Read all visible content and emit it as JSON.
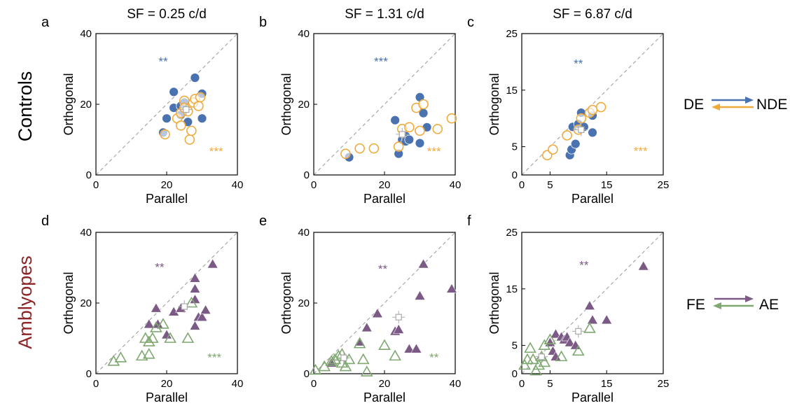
{
  "colors": {
    "blue": "#4a72b0",
    "orange": "#f0aa3c",
    "purple": "#7c5a86",
    "green": "#7fa870",
    "gray": "#aaaaaa",
    "axis": "#000000",
    "group_control": "#000000",
    "group_amblyope": "#8b2626"
  },
  "groups": {
    "top": "Controls",
    "bottom": "Amblyopes"
  },
  "legends": {
    "top": {
      "left": "DE",
      "right": "NDE"
    },
    "bottom": {
      "left": "FE",
      "right": "AE"
    }
  },
  "chart_data": [
    {
      "panel": "a",
      "type": "scatter",
      "title": "SF = 0.25 c/d",
      "xlabel": "Parallel",
      "ylabel": "Orthogonal",
      "xlim": [
        0,
        40
      ],
      "ylim": [
        0,
        40
      ],
      "ticks": [
        0,
        20,
        40
      ],
      "marker": "circle",
      "series": [
        {
          "color": "blue",
          "filled": true,
          "points": [
            [
              19,
              12
            ],
            [
              20,
              16
            ],
            [
              22,
              19
            ],
            [
              22,
              23.5
            ],
            [
              24,
              19.5
            ],
            [
              24,
              17
            ],
            [
              25,
              20.5
            ],
            [
              26,
              15
            ],
            [
              28,
              27.5
            ],
            [
              30,
              23
            ],
            [
              30,
              16
            ]
          ]
        },
        {
          "color": "orange",
          "filled": false,
          "points": [
            [
              19.5,
              11.5
            ],
            [
              23,
              16
            ],
            [
              24,
              14
            ],
            [
              24,
              17.5
            ],
            [
              25,
              21
            ],
            [
              25,
              19
            ],
            [
              26,
              18
            ],
            [
              26.5,
              10
            ],
            [
              27,
              12.5
            ],
            [
              27.5,
              20.5
            ],
            [
              28,
              21.5
            ],
            [
              29,
              19.5
            ],
            [
              29.5,
              22
            ]
          ]
        },
        {
          "color": "gray",
          "filled": false,
          "marker": "square",
          "points": [
            [
              25.5,
              18.5
            ]
          ]
        }
      ],
      "annotations": [
        {
          "text": "**",
          "color": "blue",
          "x": 19,
          "y": 31
        },
        {
          "text": "***",
          "color": "orange",
          "x": 34,
          "y": 5.5
        }
      ]
    },
    {
      "panel": "b",
      "type": "scatter",
      "title": "SF = 1.31 c/d",
      "xlabel": "Parallel",
      "ylabel": "Orthogonal",
      "xlim": [
        0,
        40
      ],
      "ylim": [
        0,
        40
      ],
      "ticks": [
        0,
        20,
        40
      ],
      "marker": "circle",
      "series": [
        {
          "color": "blue",
          "filled": true,
          "points": [
            [
              10,
              5
            ],
            [
              23,
              15.5
            ],
            [
              24,
              6
            ],
            [
              25,
              10
            ],
            [
              26,
              11
            ],
            [
              26,
              9.5
            ],
            [
              27,
              10
            ],
            [
              30,
              22
            ],
            [
              30,
              9
            ],
            [
              31,
              17.5
            ],
            [
              32,
              13.5
            ]
          ]
        },
        {
          "color": "orange",
          "filled": false,
          "points": [
            [
              9,
              6
            ],
            [
              13,
              7.5
            ],
            [
              17,
              7.5
            ],
            [
              24,
              8
            ],
            [
              25,
              13
            ],
            [
              27,
              13.5
            ],
            [
              29,
              19
            ],
            [
              30,
              12.5
            ],
            [
              31,
              20
            ],
            [
              35,
              13
            ],
            [
              39,
              16
            ]
          ]
        },
        {
          "color": "gray",
          "filled": false,
          "marker": "square",
          "points": [
            [
              25,
              11.5
            ]
          ]
        }
      ],
      "annotations": [
        {
          "text": "***",
          "color": "blue",
          "x": 19,
          "y": 31
        },
        {
          "text": "***",
          "color": "orange",
          "x": 34,
          "y": 5.5
        }
      ]
    },
    {
      "panel": "c",
      "type": "scatter",
      "title": "SF = 6.87 c/d",
      "xlabel": "Parallel",
      "ylabel": "Orthogonal",
      "xlim": [
        0,
        25
      ],
      "ylim": [
        0,
        25
      ],
      "ticks": [
        0,
        5,
        15,
        25
      ],
      "xticks": [
        0,
        5,
        15,
        25
      ],
      "marker": "circle",
      "series": [
        {
          "color": "blue",
          "filled": true,
          "points": [
            [
              8.5,
              3.5
            ],
            [
              8.8,
              4.5
            ],
            [
              9.5,
              5.5
            ],
            [
              9,
              8.5
            ],
            [
              10,
              9
            ],
            [
              10.5,
              11
            ],
            [
              11,
              8.5
            ],
            [
              12.5,
              7.5
            ],
            [
              12.5,
              10.5
            ]
          ]
        },
        {
          "color": "orange",
          "filled": false,
          "points": [
            [
              4.5,
              3.5
            ],
            [
              5.5,
              4.5
            ],
            [
              8,
              7
            ],
            [
              10,
              8
            ],
            [
              10.5,
              10
            ],
            [
              12,
              11
            ],
            [
              12.5,
              11.5
            ],
            [
              14,
              12
            ]
          ]
        },
        {
          "color": "gray",
          "filled": false,
          "marker": "square",
          "points": [
            [
              10.5,
              8
            ]
          ]
        }
      ],
      "annotations": [
        {
          "text": "**",
          "color": "blue",
          "x": 10,
          "y": 19
        },
        {
          "text": "***",
          "color": "orange",
          "x": 21,
          "y": 3.5
        }
      ]
    },
    {
      "panel": "d",
      "type": "scatter",
      "title": "",
      "xlabel": "Parallel",
      "ylabel": "Orthogonal",
      "xlim": [
        0,
        40
      ],
      "ylim": [
        0,
        40
      ],
      "ticks": [
        0,
        20,
        40
      ],
      "marker": "triangle",
      "series": [
        {
          "color": "purple",
          "filled": true,
          "points": [
            [
              15,
              14
            ],
            [
              17,
              18.5
            ],
            [
              17.5,
              14
            ],
            [
              20,
              11
            ],
            [
              22,
              17.5
            ],
            [
              24,
              18.5
            ],
            [
              28,
              27
            ],
            [
              28,
              24
            ],
            [
              28,
              21
            ],
            [
              28,
              13.5
            ],
            [
              29,
              16
            ],
            [
              30,
              16
            ],
            [
              31,
              18
            ],
            [
              33,
              31
            ]
          ]
        },
        {
          "color": "green",
          "filled": false,
          "points": [
            [
              5,
              3.5
            ],
            [
              7,
              4.5
            ],
            [
              13,
              5
            ],
            [
              15,
              5.5
            ],
            [
              14,
              10
            ],
            [
              15,
              9
            ],
            [
              16,
              10
            ],
            [
              17,
              13
            ],
            [
              19,
              14
            ],
            [
              21,
              10
            ],
            [
              26,
              10
            ],
            [
              27,
              20
            ]
          ]
        },
        {
          "color": "gray",
          "filled": false,
          "marker": "square",
          "points": [
            [
              25,
              19
            ]
          ]
        }
      ],
      "annotations": [
        {
          "text": "**",
          "color": "purple",
          "x": 18,
          "y": 29
        },
        {
          "text": "***",
          "color": "green",
          "x": 33.5,
          "y": 3.5
        }
      ]
    },
    {
      "panel": "e",
      "type": "scatter",
      "title": "",
      "xlabel": "Parallel",
      "ylabel": "Orthogonal",
      "xlim": [
        0,
        40
      ],
      "ylim": [
        0,
        40
      ],
      "ticks": [
        0,
        20,
        40
      ],
      "marker": "triangle",
      "series": [
        {
          "color": "purple",
          "filled": true,
          "points": [
            [
              5,
              3
            ],
            [
              13,
              9
            ],
            [
              15,
              13
            ],
            [
              18,
              17
            ],
            [
              23,
              12
            ],
            [
              24,
              12.5
            ],
            [
              27,
              7
            ],
            [
              29,
              7
            ],
            [
              30,
              22
            ],
            [
              31,
              31
            ],
            [
              39,
              24
            ]
          ]
        },
        {
          "color": "green",
          "filled": false,
          "points": [
            [
              0.5,
              1
            ],
            [
              3,
              2
            ],
            [
              5,
              3.5
            ],
            [
              6,
              4
            ],
            [
              7,
              5
            ],
            [
              8,
              5.5
            ],
            [
              8,
              3
            ],
            [
              9,
              2
            ],
            [
              10,
              4
            ],
            [
              13,
              8.5
            ],
            [
              14,
              4
            ],
            [
              15,
              0.5
            ],
            [
              20,
              8
            ],
            [
              23,
              5
            ]
          ]
        },
        {
          "color": "gray",
          "filled": false,
          "marker": "square",
          "points": [
            [
              24,
              16
            ],
            [
              8.5,
              4.5
            ]
          ]
        }
      ],
      "annotations": [
        {
          "text": "**",
          "color": "purple",
          "x": 19.5,
          "y": 28.5
        },
        {
          "text": "**",
          "color": "green",
          "x": 34,
          "y": 3.5
        }
      ]
    },
    {
      "panel": "f",
      "type": "scatter",
      "title": "",
      "xlabel": "Parallel",
      "ylabel": "Orthogonal",
      "xlim": [
        0,
        25
      ],
      "ylim": [
        0,
        25
      ],
      "ticks": [
        0,
        5,
        15,
        25
      ],
      "xticks": [
        0,
        5,
        15,
        25
      ],
      "marker": "triangle",
      "series": [
        {
          "color": "purple",
          "filled": true,
          "points": [
            [
              5,
              5.5
            ],
            [
              5.5,
              4
            ],
            [
              6,
              3
            ],
            [
              6,
              7
            ],
            [
              7,
              6.5
            ],
            [
              7.5,
              6
            ],
            [
              8,
              6.5
            ],
            [
              8.5,
              5.5
            ],
            [
              9.5,
              5
            ],
            [
              12,
              12
            ],
            [
              12.5,
              9.5
            ],
            [
              15,
              9.5
            ],
            [
              21.5,
              19
            ]
          ]
        },
        {
          "color": "green",
          "filled": false,
          "points": [
            [
              0.5,
              1.5
            ],
            [
              1,
              2.5
            ],
            [
              1.5,
              4.5
            ],
            [
              2,
              2.5
            ],
            [
              2.5,
              0.5
            ],
            [
              3,
              1.5
            ],
            [
              3.5,
              3
            ],
            [
              4,
              2
            ],
            [
              4,
              5
            ],
            [
              5,
              6
            ],
            [
              7,
              3
            ],
            [
              10,
              4
            ],
            [
              12,
              8
            ]
          ]
        },
        {
          "color": "gray",
          "filled": false,
          "marker": "square",
          "points": [
            [
              10,
              7.5
            ],
            [
              3.5,
              3
            ]
          ]
        }
      ],
      "annotations": [
        {
          "text": "**",
          "color": "purple",
          "x": 11,
          "y": 18.5
        }
      ]
    }
  ]
}
